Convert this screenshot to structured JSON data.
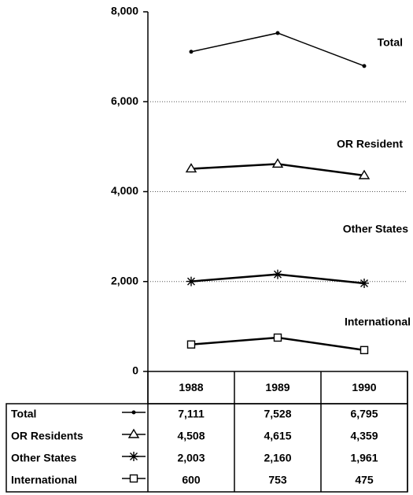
{
  "chart_data": {
    "type": "line",
    "categories": [
      "1988",
      "1989",
      "1990"
    ],
    "series": [
      {
        "name": "Total",
        "color": "#000000",
        "marker": "dot",
        "values": [
          7111,
          7528,
          6795
        ],
        "value_labels": [
          "7,111",
          "7,528",
          "6,795"
        ]
      },
      {
        "name": "OR Residents",
        "color": "#000000",
        "marker": "triangle",
        "values": [
          4508,
          4615,
          4359
        ],
        "value_labels": [
          "4,508",
          "4,615",
          "4,359"
        ]
      },
      {
        "name": "Other States",
        "color": "#000000",
        "marker": "star",
        "values": [
          2003,
          2160,
          1961
        ],
        "value_labels": [
          "2,003",
          "2,160",
          "1,961"
        ]
      },
      {
        "name": "International",
        "color": "#000000",
        "marker": "square",
        "values": [
          600,
          753,
          475
        ],
        "value_labels": [
          "600",
          "753",
          "475"
        ]
      }
    ],
    "annotations": [
      "Total",
      "OR Resident",
      "Other States",
      "International"
    ],
    "ylim": [
      0,
      8000
    ],
    "yticks": [
      0,
      {
        "value": 2000,
        "label": "2,000"
      },
      {
        "value": 4000,
        "label": "4,000"
      },
      {
        "value": 6000,
        "label": "6,000"
      },
      {
        "value": 8000,
        "label": "8,000"
      }
    ],
    "grid": true
  }
}
